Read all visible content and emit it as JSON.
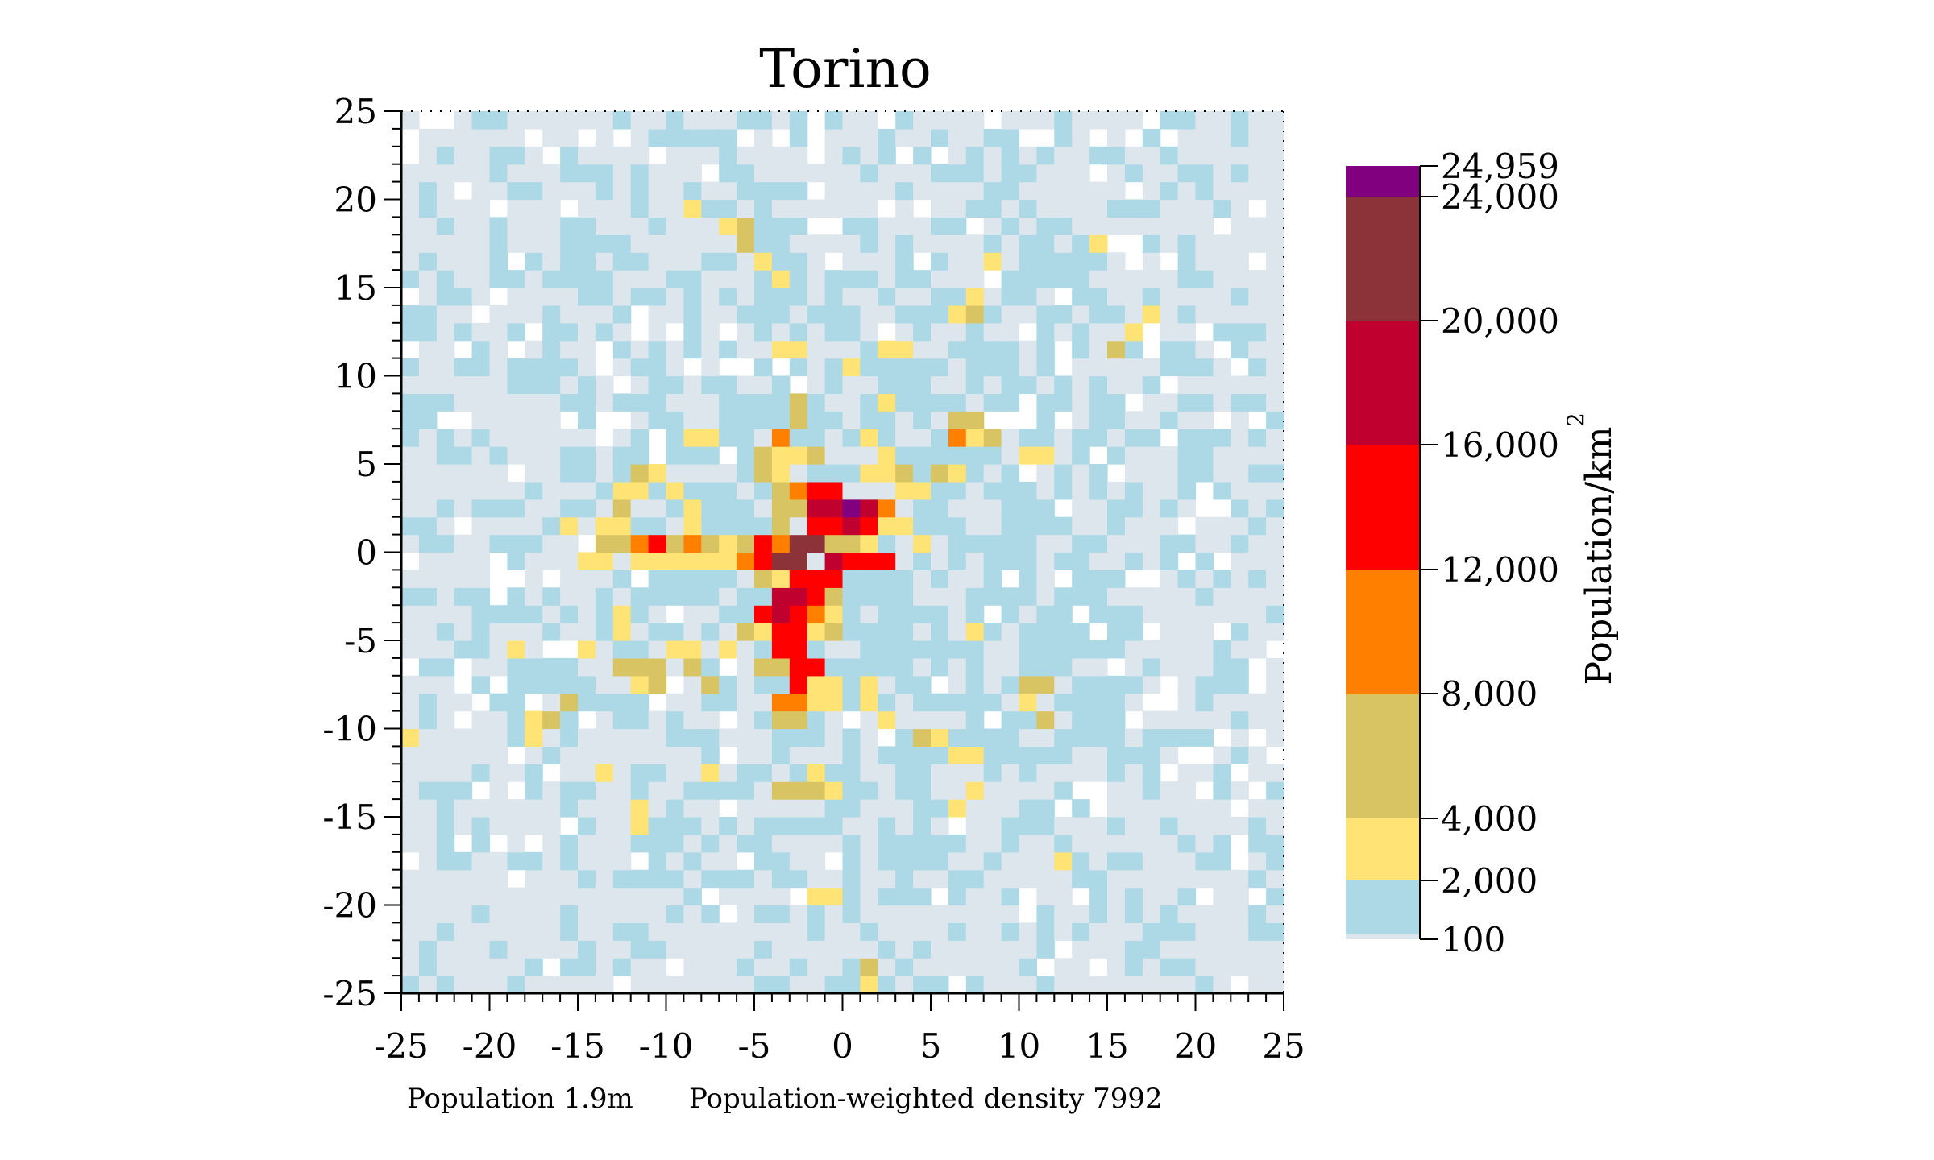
{
  "chart_data": {
    "type": "heatmap",
    "title": "Torino",
    "x_ticks": [
      -25,
      -20,
      -15,
      -10,
      -5,
      0,
      5,
      10,
      15,
      20,
      25
    ],
    "y_ticks": [
      25,
      20,
      15,
      10,
      5,
      0,
      -5,
      -10,
      -15,
      -20,
      -25
    ],
    "xlim": [
      -25,
      25
    ],
    "ylim": [
      -25,
      25
    ],
    "cell_size": 1,
    "colorbar": {
      "label": "Population/km",
      "label_superscript": "2",
      "ticks": [
        "24,959",
        "24,000",
        "20,000",
        "16,000",
        "12,000",
        "8,000",
        "4,000",
        "2,000",
        "100"
      ],
      "bins": [
        {
          "min": 100,
          "max": 2000,
          "color": "#add8e6"
        },
        {
          "min": 2000,
          "max": 4000,
          "color": "#ffe375"
        },
        {
          "min": 4000,
          "max": 8000,
          "color": "#d9c464"
        },
        {
          "min": 8000,
          "max": 12000,
          "color": "#ff8000"
        },
        {
          "min": 12000,
          "max": 16000,
          "color": "#ff0000"
        },
        {
          "min": 16000,
          "max": 20000,
          "color": "#c0002f"
        },
        {
          "min": 20000,
          "max": 24000,
          "color": "#8b3339"
        },
        {
          "min": 24000,
          "max": 24959,
          "color": "#800080"
        }
      ]
    },
    "colors": {
      "empty": "#ffffff",
      "very_low": "#dce6ec",
      "low": "#add8e6",
      "c2k": "#ffe375",
      "c4k": "#d9c464",
      "c8k": "#ff8000",
      "c12k": "#ff0000",
      "c16k": "#c0002f",
      "c20k": "#8b3339",
      "c24k": "#800080"
    },
    "high_density_cells": [
      {
        "x": 0,
        "y": 2,
        "v": 24959
      },
      {
        "x": -4,
        "y": 0,
        "v": 22000
      },
      {
        "x": -3,
        "y": 0,
        "v": 22000
      },
      {
        "x": -4,
        "y": -1,
        "v": 22000
      },
      {
        "x": -3,
        "y": -1,
        "v": 22000
      },
      {
        "x": -2,
        "y": 0,
        "v": 21000
      },
      {
        "x": -1,
        "y": 2,
        "v": 18000
      },
      {
        "x": -2,
        "y": 2,
        "v": 18000
      },
      {
        "x": 1,
        "y": 2,
        "v": 17000
      },
      {
        "x": 0,
        "y": 1,
        "v": 17000
      },
      {
        "x": -3,
        "y": -3,
        "v": 18000
      },
      {
        "x": -4,
        "y": -3,
        "v": 17000
      },
      {
        "x": -4,
        "y": -4,
        "v": 17000
      },
      {
        "x": -1,
        "y": -1,
        "v": 16500
      },
      {
        "x": -2,
        "y": 3,
        "v": 14000
      },
      {
        "x": -1,
        "y": 3,
        "v": 14000
      },
      {
        "x": -2,
        "y": 1,
        "v": 14000
      },
      {
        "x": -1,
        "y": 1,
        "v": 13000
      },
      {
        "x": 1,
        "y": 1,
        "v": 13000
      },
      {
        "x": -5,
        "y": 0,
        "v": 13500
      },
      {
        "x": -5,
        "y": -1,
        "v": 13500
      },
      {
        "x": 0,
        "y": -1,
        "v": 14000
      },
      {
        "x": 1,
        "y": -1,
        "v": 13000
      },
      {
        "x": 2,
        "y": -1,
        "v": 13000
      },
      {
        "x": -2,
        "y": -2,
        "v": 14000
      },
      {
        "x": -1,
        "y": -2,
        "v": 13000
      },
      {
        "x": -3,
        "y": -2,
        "v": 13500
      },
      {
        "x": -2,
        "y": -3,
        "v": 13000
      },
      {
        "x": -5,
        "y": -4,
        "v": 13000
      },
      {
        "x": -3,
        "y": -4,
        "v": 13000
      },
      {
        "x": -4,
        "y": -5,
        "v": 13500
      },
      {
        "x": -3,
        "y": -5,
        "v": 12500
      },
      {
        "x": -4,
        "y": -6,
        "v": 13000
      },
      {
        "x": -3,
        "y": -6,
        "v": 13000
      },
      {
        "x": -3,
        "y": -7,
        "v": 12500
      },
      {
        "x": -2,
        "y": -7,
        "v": 13000
      },
      {
        "x": -3,
        "y": -8,
        "v": 13000
      },
      {
        "x": -11,
        "y": 0,
        "v": 12500
      },
      {
        "x": -4,
        "y": 6,
        "v": 9000
      },
      {
        "x": -3,
        "y": 3,
        "v": 9500
      },
      {
        "x": 2,
        "y": 2,
        "v": 10000
      },
      {
        "x": -6,
        "y": -1,
        "v": 9000
      },
      {
        "x": -12,
        "y": 0,
        "v": 9000
      },
      {
        "x": -9,
        "y": 0,
        "v": 10000
      },
      {
        "x": -4,
        "y": 0.001,
        "v": 9000
      },
      {
        "x": -2,
        "y": -4,
        "v": 9000
      },
      {
        "x": -4,
        "y": -9,
        "v": 9500
      },
      {
        "x": -3,
        "y": -9,
        "v": 9000
      },
      {
        "x": 6,
        "y": 6,
        "v": 9000
      }
    ],
    "footer": {
      "population": "Population 1.9m",
      "weighted_density": "Population-weighted density 7992"
    }
  }
}
